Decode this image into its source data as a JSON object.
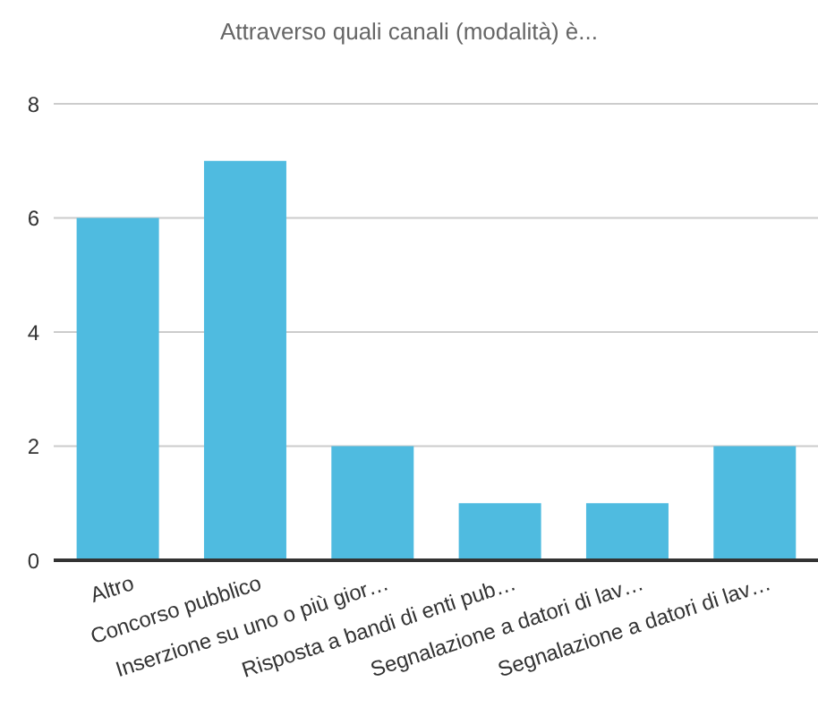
{
  "chart_data": {
    "type": "bar",
    "title": "Attraverso quali canali (modalità) è...",
    "categories": [
      "Altro",
      "Concorso pubblico",
      "Inserzione su uno o più gior…",
      "Risposta a bandi di enti pub…",
      "Segnalazione a datori di lav…",
      "Segnalazione a datori di lav…"
    ],
    "values": [
      6,
      7,
      2,
      1,
      1,
      2
    ],
    "color": "#4fbbe0",
    "ylim": [
      0,
      8
    ],
    "yticks": [
      0,
      2,
      4,
      6,
      8
    ],
    "grid": "y"
  }
}
